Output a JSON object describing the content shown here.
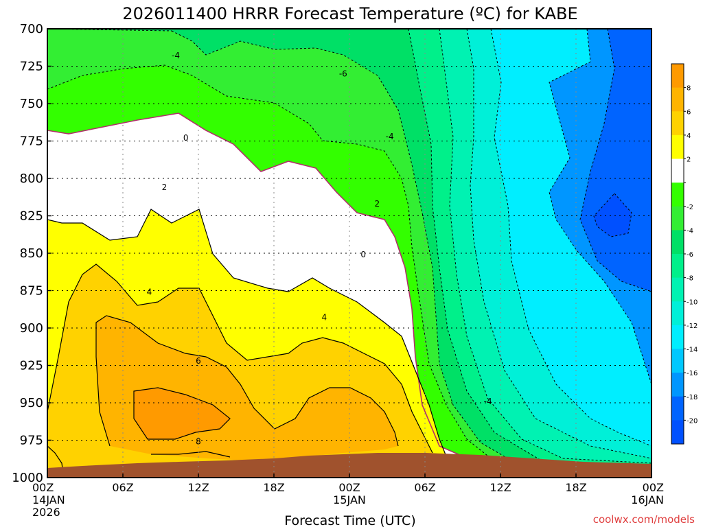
{
  "chart_data": {
    "type": "heatmap",
    "title": "2026011400 HRRR Forecast Temperature (ºC) for KABE",
    "xlabel": "Forecast Time (UTC)",
    "ylabel": "",
    "x_ticks": [
      {
        "l1": "00Z",
        "l2": "14JAN",
        "l3": "2026"
      },
      {
        "l1": "06Z",
        "l2": "",
        "l3": ""
      },
      {
        "l1": "12Z",
        "l2": "",
        "l3": ""
      },
      {
        "l1": "18Z",
        "l2": "",
        "l3": ""
      },
      {
        "l1": "00Z",
        "l2": "15JAN",
        "l3": ""
      },
      {
        "l1": "06Z",
        "l2": "",
        "l3": ""
      },
      {
        "l1": "12Z",
        "l2": "",
        "l3": ""
      },
      {
        "l1": "18Z",
        "l2": "",
        "l3": ""
      },
      {
        "l1": "00Z",
        "l2": "16JAN",
        "l3": ""
      }
    ],
    "x_range_hours": [
      0,
      48
    ],
    "y_range_hpa": [
      700,
      1000
    ],
    "y_ticks": [
      "700",
      "725",
      "750",
      "775",
      "800",
      "825",
      "850",
      "875",
      "900",
      "925",
      "950",
      "975",
      "1000"
    ],
    "grid": true,
    "colorbar": {
      "position": "right",
      "labels": [
        "8",
        "6",
        "4",
        "2",
        "",
        "-2",
        "-4",
        "-6",
        "-8",
        "-10",
        "-12",
        "-14",
        "-16",
        "-18",
        "-20"
      ],
      "colors": [
        "#ff9a00",
        "#ffb400",
        "#ffd200",
        "#ffff00",
        "#ffffff",
        "#33ff00",
        "#33ee33",
        "#00e066",
        "#00f08a",
        "#00f2b2",
        "#00f0d8",
        "#00eeff",
        "#00c8ff",
        "#0096ff",
        "#0064ff",
        "#0050ff"
      ]
    },
    "contour_labels": [
      {
        "t": "-4",
        "h": 10.2,
        "p": 718
      },
      {
        "t": "-6",
        "h": 23.5,
        "p": 730
      },
      {
        "t": "-4",
        "h": 27.2,
        "p": 772
      },
      {
        "t": "0",
        "h": 11,
        "p": 773
      },
      {
        "t": "2",
        "h": 9.3,
        "p": 806
      },
      {
        "t": "2",
        "h": 26.2,
        "p": 817
      },
      {
        "t": "0",
        "h": 25.1,
        "p": 851
      },
      {
        "t": "4",
        "h": 8.1,
        "p": 876
      },
      {
        "t": "4",
        "h": 22,
        "p": 893
      },
      {
        "t": "6",
        "h": 12,
        "p": 922
      },
      {
        "t": "-4",
        "h": 35,
        "p": 949
      },
      {
        "t": "8",
        "h": 12,
        "p": 976
      }
    ],
    "credit": "coolwx.com/models"
  }
}
